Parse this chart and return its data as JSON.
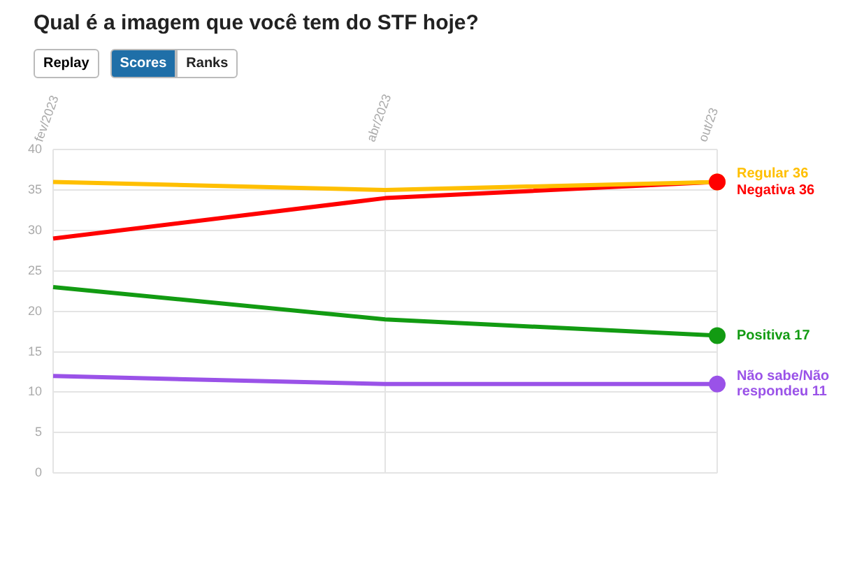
{
  "chart_data": {
    "type": "line",
    "title": "Qual é a imagem que você tem do STF hoje?",
    "annotations": [
      "Replay",
      "Scores",
      "Ranks"
    ],
    "categories": [
      "fev/2023",
      "abr/2023",
      "out/23"
    ],
    "ylim": [
      0,
      40
    ],
    "yticks": [
      0,
      5,
      10,
      15,
      20,
      25,
      30,
      35,
      40
    ],
    "grid": true,
    "legend": false,
    "series": [
      {
        "name": "Regular",
        "color": "#ffbf00",
        "values": [
          36,
          35,
          36
        ],
        "value_labels": [
          null,
          null,
          "36"
        ]
      },
      {
        "name": "Negativa",
        "color": "#ff0000",
        "values": [
          29,
          34,
          36
        ],
        "value_labels": [
          null,
          null,
          "36"
        ]
      },
      {
        "name": "Positiva",
        "color": "#129b12",
        "values": [
          23,
          19,
          17
        ],
        "value_labels": [
          null,
          null,
          "17"
        ]
      },
      {
        "name": "Não sabe/Não respondeu",
        "color": "#9a52e8",
        "values": [
          12,
          11,
          11
        ],
        "value_labels": [
          null,
          null,
          "11"
        ]
      }
    ]
  }
}
